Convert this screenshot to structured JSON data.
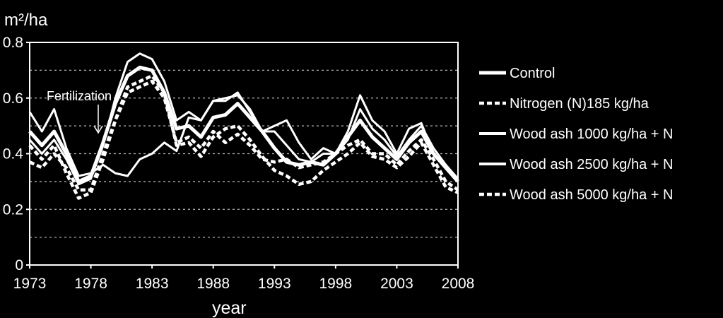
{
  "chart_data": {
    "type": "line",
    "ylabel": "m²/ha",
    "xlabel": "year",
    "ylim": [
      0,
      0.8
    ],
    "xlim": [
      1973,
      2008
    ],
    "yticks": [
      "0",
      "0.2",
      "0.4",
      "0.6",
      "0.8"
    ],
    "xticks": [
      "1973",
      "1978",
      "1983",
      "1988",
      "1993",
      "1998",
      "2003",
      "2008"
    ],
    "grid": "horizontal dashed",
    "legend_position": "right",
    "annotation": {
      "text": "Fertilization",
      "x": 1978
    },
    "x": [
      1973,
      1974,
      1975,
      1976,
      1977,
      1978,
      1979,
      1980,
      1981,
      1982,
      1983,
      1984,
      1985,
      1986,
      1987,
      1988,
      1989,
      1990,
      1991,
      1992,
      1993,
      1994,
      1995,
      1996,
      1997,
      1998,
      1999,
      2000,
      2001,
      2002,
      2003,
      2004,
      2005,
      2006,
      2007,
      2008
    ],
    "series": [
      {
        "name": "Control",
        "style": "solid-thick",
        "values": [
          0.48,
          0.43,
          0.48,
          0.4,
          0.3,
          0.32,
          0.44,
          0.58,
          0.68,
          0.71,
          0.7,
          0.62,
          0.49,
          0.5,
          0.46,
          0.53,
          0.54,
          0.58,
          0.53,
          0.48,
          0.42,
          0.37,
          0.36,
          0.37,
          0.36,
          0.4,
          0.46,
          0.52,
          0.46,
          0.42,
          0.38,
          0.44,
          0.48,
          0.4,
          0.35,
          0.3
        ]
      },
      {
        "name": "Nitrogen (N)185 kg/ha",
        "style": "dashed",
        "values": [
          0.37,
          0.35,
          0.4,
          0.35,
          0.27,
          0.27,
          0.4,
          0.52,
          0.62,
          0.64,
          0.66,
          0.6,
          0.44,
          0.46,
          0.42,
          0.48,
          0.44,
          0.47,
          0.43,
          0.38,
          0.37,
          0.38,
          0.35,
          0.36,
          0.37,
          0.4,
          0.43,
          0.45,
          0.4,
          0.4,
          0.36,
          0.41,
          0.45,
          0.38,
          0.3,
          0.27
        ]
      },
      {
        "name": "Wood ash 1000 kg/ha + N",
        "style": "solid",
        "values": [
          0.55,
          0.48,
          0.56,
          0.42,
          0.32,
          0.33,
          0.36,
          0.33,
          0.32,
          0.38,
          0.4,
          0.44,
          0.41,
          0.53,
          0.52,
          0.59,
          0.6,
          0.61,
          0.56,
          0.48,
          0.5,
          0.52,
          0.44,
          0.38,
          0.42,
          0.4,
          0.48,
          0.61,
          0.52,
          0.48,
          0.4,
          0.49,
          0.51,
          0.4,
          0.36,
          0.31
        ]
      },
      {
        "name": "Wood ash 2500 kg/ha + N",
        "style": "solid",
        "values": [
          0.45,
          0.4,
          0.45,
          0.38,
          0.29,
          0.31,
          0.43,
          0.6,
          0.73,
          0.76,
          0.74,
          0.66,
          0.52,
          0.55,
          0.52,
          0.59,
          0.59,
          0.62,
          0.55,
          0.48,
          0.48,
          0.43,
          0.38,
          0.37,
          0.4,
          0.4,
          0.45,
          0.56,
          0.49,
          0.45,
          0.39,
          0.45,
          0.5,
          0.42,
          0.36,
          0.3
        ]
      },
      {
        "name": "Wood ash 5000 kg/ha + N",
        "style": "dashed",
        "values": [
          0.43,
          0.38,
          0.43,
          0.33,
          0.24,
          0.26,
          0.38,
          0.52,
          0.64,
          0.66,
          0.68,
          0.62,
          0.43,
          0.44,
          0.39,
          0.46,
          0.49,
          0.5,
          0.45,
          0.39,
          0.34,
          0.32,
          0.29,
          0.3,
          0.34,
          0.37,
          0.4,
          0.44,
          0.39,
          0.38,
          0.35,
          0.39,
          0.44,
          0.36,
          0.28,
          0.26
        ]
      }
    ]
  }
}
